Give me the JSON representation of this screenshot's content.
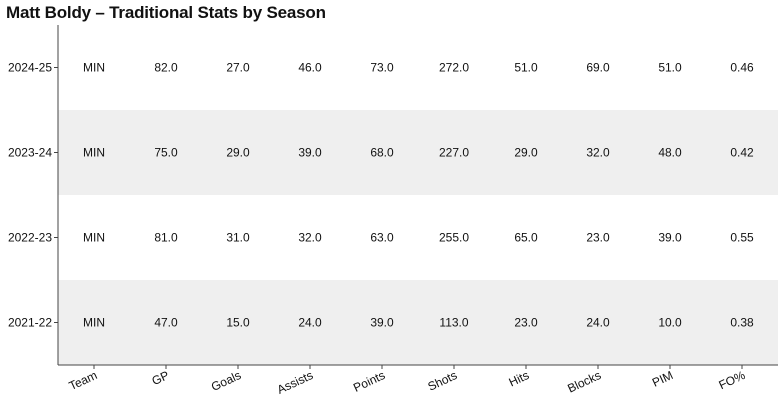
{
  "chart_data": {
    "type": "table",
    "title": "Matt Boldy – Traditional Stats by Season",
    "columns": [
      "Team",
      "GP",
      "Goals",
      "Assists",
      "Points",
      "Shots",
      "Hits",
      "Blocks",
      "PIM",
      "FO%"
    ],
    "rows": [
      {
        "season": "2024-25",
        "cells": [
          "MIN",
          "82.0",
          "27.0",
          "46.0",
          "73.0",
          "272.0",
          "51.0",
          "69.0",
          "51.0",
          "0.46"
        ]
      },
      {
        "season": "2023-24",
        "cells": [
          "MIN",
          "75.0",
          "29.0",
          "39.0",
          "68.0",
          "227.0",
          "29.0",
          "32.0",
          "48.0",
          "0.42"
        ]
      },
      {
        "season": "2022-23",
        "cells": [
          "MIN",
          "81.0",
          "31.0",
          "32.0",
          "63.0",
          "255.0",
          "65.0",
          "23.0",
          "39.0",
          "0.55"
        ]
      },
      {
        "season": "2021-22",
        "cells": [
          "MIN",
          "47.0",
          "15.0",
          "24.0",
          "39.0",
          "113.0",
          "23.0",
          "24.0",
          "10.0",
          "0.38"
        ]
      }
    ],
    "band_colors": [
      "#ffffff",
      "#efefef"
    ],
    "text_color": "#111111",
    "axis_color": "#444444"
  }
}
